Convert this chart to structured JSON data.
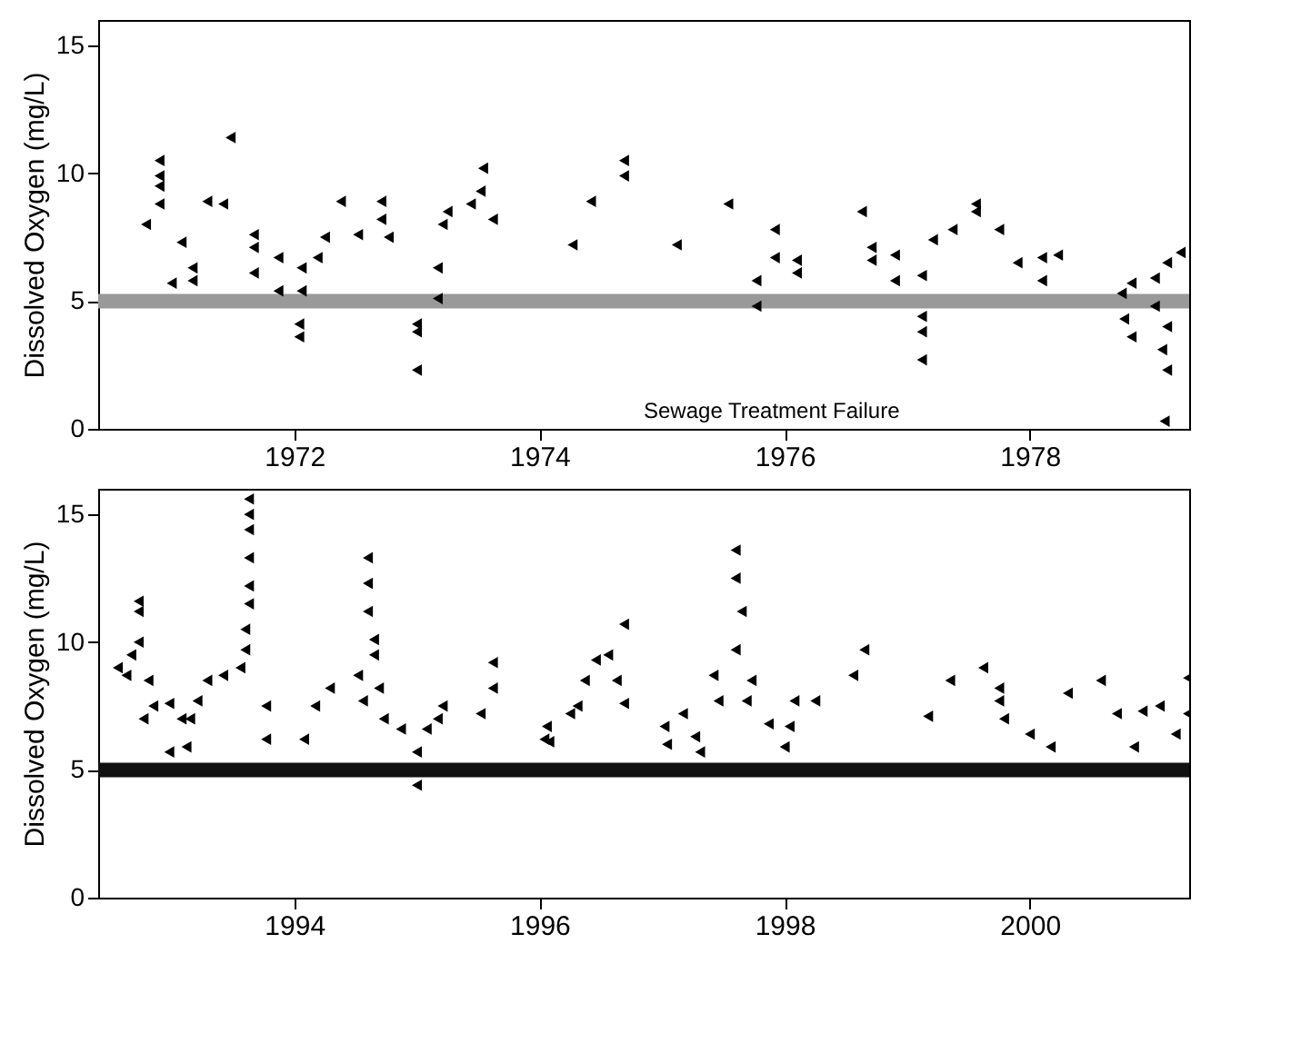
{
  "chart_data": [
    {
      "type": "scatter",
      "ylabel": "Dissolved Oxygen (mg/L)",
      "xlim": [
        1970.4,
        1979.3
      ],
      "ylim": [
        0,
        16
      ],
      "xticks": [
        1972,
        1974,
        1976,
        1978
      ],
      "yticks": [
        0,
        5,
        10,
        15
      ],
      "marker": "triangle",
      "ref_lines": [
        {
          "axis": "y",
          "value": 5,
          "color": "#999999"
        }
      ],
      "annotations": [
        "Sewage Treatment Failure"
      ],
      "series": [
        {
          "color": "#000000",
          "x": [
            1979.23,
            1979.12,
            1979.02,
            1978.83,
            1978.75,
            1979.02,
            1979.12,
            1979.08,
            1979.12,
            1978.83,
            1978.77,
            1979.1,
            1978.23,
            1978.1,
            1977.9,
            1978.1,
            1977.56,
            1977.56,
            1977.75,
            1977.37,
            1977.21,
            1977.12,
            1977.12,
            1977.12,
            1977.12,
            1976.9,
            1976.9,
            1976.71,
            1976.71,
            1976.63,
            1976.1,
            1976.1,
            1975.92,
            1975.92,
            1975.77,
            1975.77,
            1975.54,
            1975.12,
            1974.69,
            1974.69,
            1974.42,
            1974.27,
            1973.54,
            1973.52,
            1973.44,
            1973.62,
            1973.25,
            1973.21,
            1973.17,
            1973.17,
            1973.0,
            1973.0,
            1973.0,
            1972.71,
            1972.71,
            1972.77,
            1972.38,
            1972.52,
            1972.25,
            1972.19,
            1972.06,
            1972.06,
            1972.04,
            1972.04,
            1971.87,
            1971.87,
            1971.67,
            1971.67,
            1971.67,
            1971.48,
            1971.42,
            1971.29,
            1971.08,
            1971.17,
            1971.17,
            1970.9,
            1970.9,
            1970.9,
            1970.9,
            1970.79,
            1971.0
          ],
          "values": [
            6.9,
            6.5,
            5.9,
            5.7,
            5.3,
            4.8,
            4.0,
            3.1,
            2.3,
            3.6,
            4.3,
            0.3,
            6.8,
            6.7,
            6.5,
            5.8,
            8.8,
            8.5,
            7.8,
            7.8,
            7.4,
            6.0,
            4.4,
            3.8,
            2.7,
            6.8,
            5.8,
            7.1,
            6.6,
            8.5,
            6.6,
            6.1,
            6.7,
            7.8,
            5.8,
            4.8,
            8.8,
            7.2,
            10.5,
            9.9,
            8.9,
            7.2,
            10.2,
            9.3,
            8.8,
            8.2,
            8.5,
            8.0,
            6.3,
            5.1,
            4.1,
            3.8,
            2.3,
            8.9,
            8.2,
            7.5,
            8.9,
            7.6,
            7.5,
            6.7,
            6.3,
            5.4,
            4.1,
            3.6,
            6.7,
            5.4,
            7.6,
            7.1,
            6.1,
            11.4,
            8.8,
            8.9,
            7.3,
            6.3,
            5.8,
            10.5,
            9.9,
            9.5,
            8.8,
            8.0,
            5.7
          ]
        }
      ]
    },
    {
      "type": "scatter",
      "ylabel": "Dissolved Oxygen (mg/L)",
      "xlim": [
        1992.4,
        2001.3
      ],
      "ylim": [
        0,
        16
      ],
      "xticks": [
        1994,
        1996,
        1998,
        2000
      ],
      "yticks": [
        0,
        5,
        10,
        15
      ],
      "marker": "triangle",
      "ref_lines": [
        {
          "axis": "y",
          "value": 5,
          "color": "#111111"
        }
      ],
      "series": [
        {
          "color": "#000000",
          "x": [
            2001.29,
            2001.29,
            2001.06,
            2001.19,
            2000.92,
            2000.85,
            2000.58,
            2000.71,
            2000.31,
            2000.17,
            2000.0,
            1999.79,
            1999.62,
            1999.75,
            1999.75,
            1999.35,
            1999.17,
            1998.65,
            1998.56,
            1998.25,
            1998.08,
            1998.04,
            1998.0,
            1997.87,
            1997.6,
            1997.6,
            1997.65,
            1997.6,
            1997.73,
            1997.69,
            1997.42,
            1997.46,
            1997.27,
            1997.31,
            1997.17,
            1997.02,
            1997.04,
            1996.69,
            1996.56,
            1996.63,
            1996.69,
            1996.46,
            1996.37,
            1996.25,
            1996.06,
            1996.08,
            1996.31,
            1996.04,
            1995.62,
            1995.62,
            1995.52,
            1995.21,
            1995.17,
            1995.08,
            1995.0,
            1995.0,
            1994.6,
            1994.6,
            1994.6,
            1994.65,
            1994.65,
            1994.52,
            1994.69,
            1994.56,
            1994.73,
            1994.87,
            1994.29,
            1994.17,
            1994.08,
            1993.63,
            1993.63,
            1993.63,
            1993.63,
            1993.63,
            1993.63,
            1993.6,
            1993.6,
            1993.56,
            1993.42,
            1993.29,
            1993.77,
            1993.77,
            1993.21,
            1993.15,
            1992.98,
            1993.08,
            1993.12,
            1992.98,
            1992.81,
            1992.85,
            1992.77,
            1992.73,
            1992.73,
            1992.73,
            1992.67,
            1992.63,
            1992.56
          ],
          "values": [
            8.6,
            7.2,
            7.5,
            6.4,
            7.3,
            5.9,
            8.5,
            7.2,
            8.0,
            5.9,
            6.4,
            7.0,
            9.0,
            8.2,
            7.7,
            8.5,
            7.1,
            9.7,
            8.7,
            7.7,
            7.7,
            6.7,
            5.9,
            6.8,
            13.6,
            12.5,
            11.2,
            9.7,
            8.5,
            7.7,
            8.7,
            7.7,
            6.3,
            5.7,
            7.2,
            6.7,
            6.0,
            10.7,
            9.5,
            8.5,
            7.6,
            9.3,
            8.5,
            7.2,
            6.7,
            6.1,
            7.5,
            6.2,
            9.2,
            8.2,
            7.2,
            7.5,
            7.0,
            6.6,
            5.7,
            4.4,
            13.3,
            12.3,
            11.2,
            10.1,
            9.5,
            8.7,
            8.2,
            7.7,
            7.0,
            6.6,
            8.2,
            7.5,
            6.2,
            15.6,
            15.0,
            14.4,
            13.3,
            12.2,
            11.5,
            10.5,
            9.7,
            9.0,
            8.7,
            8.5,
            7.5,
            6.2,
            7.7,
            7.0,
            7.6,
            7.0,
            5.9,
            5.7,
            8.5,
            7.5,
            7.0,
            11.6,
            11.2,
            10.0,
            9.5,
            8.7,
            9.0
          ]
        }
      ]
    }
  ]
}
